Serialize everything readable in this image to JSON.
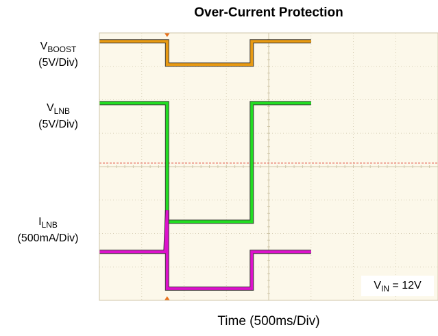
{
  "chart_data": {
    "type": "line",
    "title": "Over-Current Protection",
    "xlabel": "Time (500ms/Div)",
    "x_div_count": 8,
    "y_div_count": 8,
    "x_unit": "ms",
    "x_per_div": 500,
    "fault_start_ms": 800,
    "fault_end_ms": 1800,
    "series": [
      {
        "name": "VBOOST",
        "label_main": "V",
        "label_sub": "BOOST",
        "scale": "(5V/Div)",
        "color": "#e89a12",
        "x_ms": [
          0,
          800,
          800,
          1800,
          1800,
          2500
        ],
        "y_div": [
          7.75,
          7.75,
          7.05,
          7.05,
          7.75,
          7.75
        ]
      },
      {
        "name": "VLNB",
        "label_main": "V",
        "label_sub": "LNB",
        "scale": "(5V/Div)",
        "color": "#22dd22",
        "x_ms": [
          0,
          800,
          800,
          1800,
          1800,
          2500
        ],
        "y_div": [
          5.9,
          5.9,
          2.35,
          2.35,
          5.9,
          5.9
        ]
      },
      {
        "name": "ILNB",
        "label_main": "I",
        "label_sub": "LNB",
        "scale": "(500mA/Div)",
        "color": "#dd11cc",
        "x_ms": [
          0,
          780,
          800,
          800,
          1800,
          1800,
          2500
        ],
        "y_div": [
          1.45,
          1.45,
          2.7,
          0.35,
          0.35,
          1.45,
          1.45
        ]
      }
    ],
    "grid": true,
    "annotation": {
      "main": "V",
      "sub": "IN",
      "rest": " = 12V"
    }
  }
}
